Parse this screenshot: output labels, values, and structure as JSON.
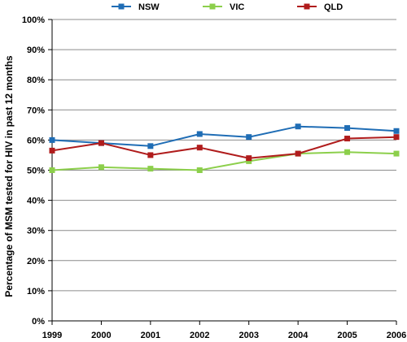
{
  "chart_data": {
    "type": "line",
    "title": "",
    "xlabel": "",
    "ylabel": "Percentage of MSM tested for HIV in past 12 months",
    "categories": [
      "1999",
      "2000",
      "2001",
      "2002",
      "2003",
      "2004",
      "2005",
      "2006"
    ],
    "ylim": [
      0,
      100
    ],
    "y_ticks": [
      "0%",
      "10%",
      "20%",
      "30%",
      "40%",
      "50%",
      "60%",
      "70%",
      "80%",
      "90%",
      "100%"
    ],
    "grid": true,
    "legend_position": "top",
    "series": [
      {
        "name": "NSW",
        "color": "#1f6db5",
        "values": [
          60,
          59,
          58,
          62,
          61,
          64.5,
          64,
          63
        ]
      },
      {
        "name": "VIC",
        "color": "#8ccf4b",
        "values": [
          50,
          51,
          50.5,
          50,
          53,
          55.5,
          56,
          55.5
        ]
      },
      {
        "name": "QLD",
        "color": "#b01c1c",
        "values": [
          56.5,
          59,
          55,
          57.5,
          54,
          55.5,
          60.5,
          61
        ]
      }
    ]
  }
}
